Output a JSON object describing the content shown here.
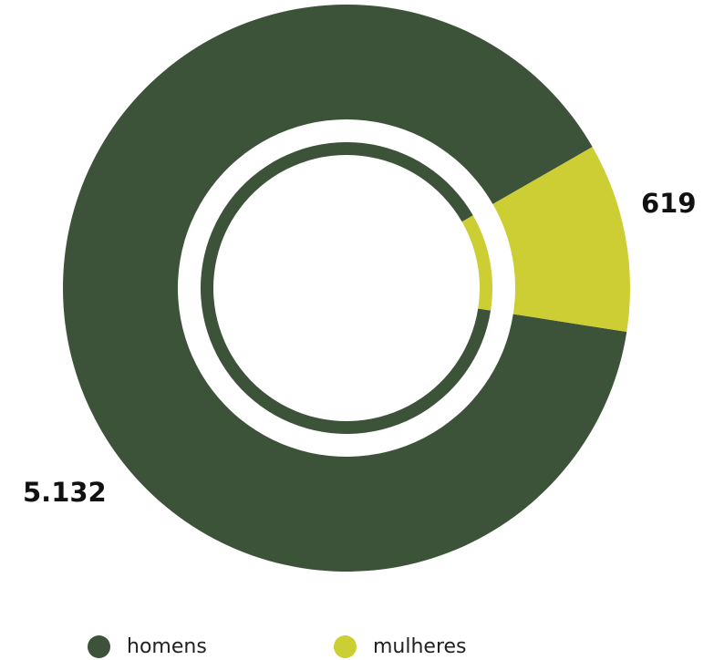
{
  "chart_data": {
    "type": "pie",
    "title": "",
    "categories": [
      "homens",
      "mulheres"
    ],
    "values": [
      5132,
      619
    ],
    "data_labels": [
      "5.132",
      "619"
    ],
    "colors": [
      "#3d5339",
      "#ccce34"
    ],
    "legend": {
      "placement": "bottom",
      "items": [
        {
          "label": "homens",
          "color": "#3d5339"
        },
        {
          "label": "mulheres",
          "color": "#ccce34"
        }
      ]
    }
  }
}
